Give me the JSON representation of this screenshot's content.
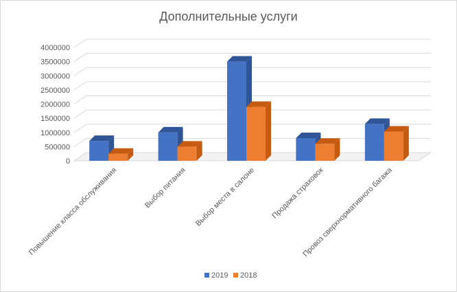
{
  "chart_data": {
    "type": "bar",
    "title": "Дополнительные услуги",
    "categories": [
      "Повышение класса обслуживания",
      "Выбор питания",
      "Выбор места в салоне",
      "Продажа страховок",
      "Провоз сверхнормативного багажа"
    ],
    "series": [
      {
        "name": "2019",
        "values": [
          700000,
          1000000,
          3500000,
          800000,
          1300000
        ],
        "color": "#4472C4",
        "side_color": "#2F5597",
        "top_color": "#2F5597"
      },
      {
        "name": "2018",
        "values": [
          250000,
          500000,
          1900000,
          600000,
          1030000
        ],
        "color": "#ED7D31",
        "side_color": "#C55A11",
        "top_color": "#C55A11"
      }
    ],
    "ylim": [
      0,
      4000000
    ],
    "yticks": [
      "0",
      "500000",
      "1000000",
      "1500000",
      "2000000",
      "2500000",
      "3000000",
      "3500000",
      "4000000"
    ],
    "grid": true,
    "legend_position": "bottom",
    "three_d": true
  }
}
